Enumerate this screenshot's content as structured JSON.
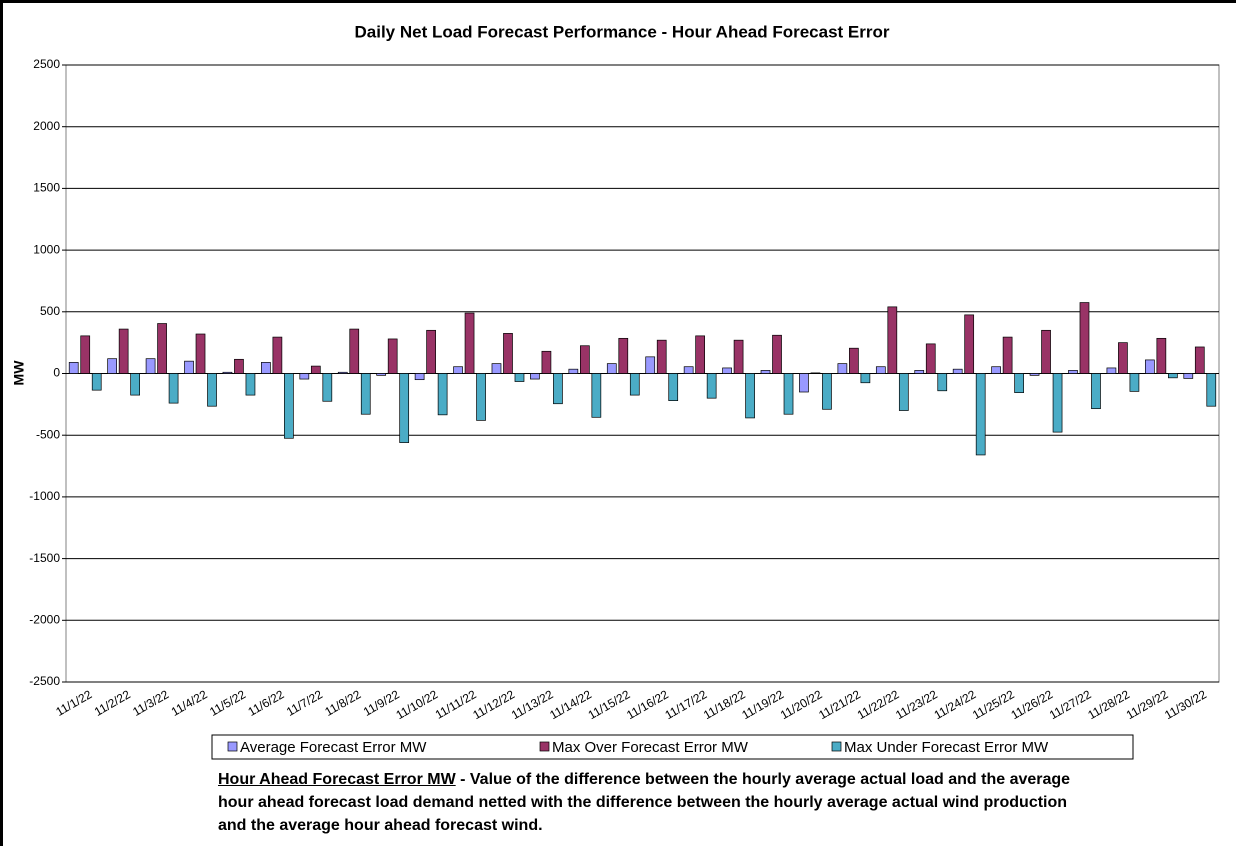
{
  "chart_data": {
    "type": "bar",
    "title": "Daily Net Load Forecast Performance - Hour Ahead Forecast Error",
    "y_label": "MW",
    "categories": [
      "11/1/22",
      "11/2/22",
      "11/3/22",
      "11/4/22",
      "11/5/22",
      "11/6/22",
      "11/7/22",
      "11/8/22",
      "11/9/22",
      "11/10/22",
      "11/11/22",
      "11/12/22",
      "11/13/22",
      "11/14/22",
      "11/15/22",
      "11/16/22",
      "11/17/22",
      "11/18/22",
      "11/19/22",
      "11/20/22",
      "11/21/22",
      "11/22/22",
      "11/23/22",
      "11/24/22",
      "11/25/22",
      "11/26/22",
      "11/27/22",
      "11/28/22",
      "11/29/22",
      "11/30/22"
    ],
    "series": [
      {
        "name": "Average Forecast Error MW",
        "color": "#9999ff",
        "values": [
          90,
          120,
          120,
          100,
          10,
          90,
          -45,
          10,
          -15,
          -50,
          55,
          80,
          -45,
          35,
          80,
          135,
          55,
          45,
          25,
          -150,
          80,
          55,
          25,
          35,
          55,
          -15,
          25,
          45,
          110,
          -40
        ]
      },
      {
        "name": "Max Over Forecast Error MW",
        "color": "#993366",
        "values": [
          305,
          360,
          405,
          320,
          115,
          295,
          60,
          360,
          280,
          350,
          490,
          325,
          180,
          225,
          285,
          270,
          305,
          270,
          310,
          5,
          205,
          540,
          240,
          475,
          295,
          350,
          575,
          250,
          285,
          215
        ]
      },
      {
        "name": "Max Under Forecast Error MW",
        "color": "#4bacc6",
        "values": [
          -135,
          -175,
          -240,
          -265,
          -175,
          -525,
          -225,
          -330,
          -560,
          -335,
          -380,
          -65,
          -245,
          -355,
          -175,
          -220,
          -200,
          -360,
          -330,
          -290,
          -75,
          -300,
          -140,
          -660,
          -155,
          -475,
          -285,
          -145,
          -35,
          -265
        ]
      }
    ],
    "ylim": [
      -2500,
      2500
    ],
    "yticks": [
      -2500,
      -2000,
      -1500,
      -1000,
      -500,
      0,
      500,
      1000,
      1500,
      2000,
      2500
    ],
    "grid": true,
    "legend": "bottom",
    "footnote_label": "Hour Ahead Forecast Error MW",
    "footnote_text": " - Value of the difference between the hourly average actual load and the average hour ahead forecast load demand netted with the difference between the hourly average actual wind production and the average hour ahead forecast wind."
  }
}
